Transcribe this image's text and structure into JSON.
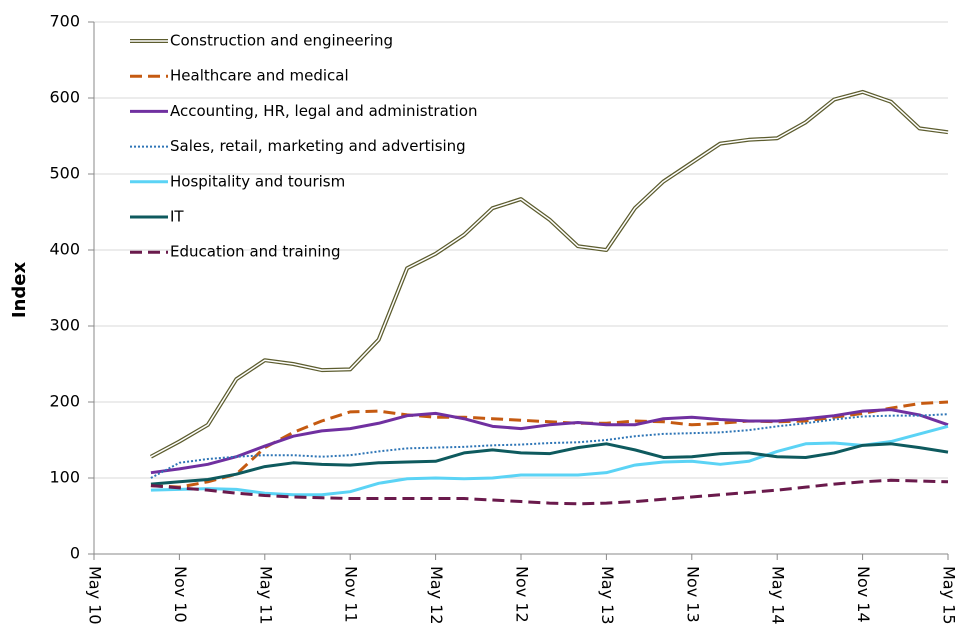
{
  "chart_data": {
    "type": "line",
    "y_label": "Index",
    "categories": [
      "May 10",
      null,
      null,
      "Nov 10",
      null,
      null,
      "May 11",
      null,
      null,
      "Nov 11",
      null,
      null,
      "May 12",
      null,
      null,
      "Nov 12",
      null,
      null,
      "May 13",
      null,
      null,
      "Nov 13",
      null,
      null,
      "May 14",
      null,
      null,
      "Nov 14",
      null,
      null,
      "May 15"
    ],
    "ylim": [
      0,
      700
    ],
    "yticks": [
      0,
      100,
      200,
      300,
      400,
      500,
      600,
      700
    ],
    "grid": true,
    "legend": "top-left",
    "series": [
      {
        "name": "Construction and engineering",
        "color": "#5c5c2e",
        "dash": "double",
        "values": [
          null,
          null,
          128,
          148,
          170,
          230,
          255,
          250,
          242,
          243,
          282,
          376,
          395,
          420,
          455,
          467,
          440,
          405,
          400,
          455,
          490,
          515,
          540,
          545,
          547,
          568,
          598,
          608,
          595,
          560,
          555
        ]
      },
      {
        "name": "Healthcare and medical",
        "color": "#c55a11",
        "dash": "dashed",
        "values": [
          null,
          null,
          90,
          88,
          95,
          105,
          140,
          160,
          175,
          187,
          188,
          183,
          180,
          180,
          178,
          176,
          174,
          172,
          172,
          175,
          174,
          170,
          172,
          175,
          174,
          175,
          180,
          185,
          192,
          198,
          200
        ]
      },
      {
        "name": "Accounting, HR, legal and administration",
        "color": "#7030a0",
        "dash": "solid",
        "values": [
          null,
          null,
          107,
          112,
          118,
          128,
          142,
          155,
          162,
          165,
          172,
          182,
          185,
          178,
          168,
          165,
          170,
          173,
          170,
          170,
          178,
          180,
          177,
          175,
          175,
          178,
          182,
          188,
          190,
          183,
          170
        ]
      },
      {
        "name": "Sales, retail, marketing and advertising",
        "color": "#2e75b6",
        "dash": "dotted",
        "values": [
          null,
          null,
          100,
          120,
          125,
          128,
          130,
          130,
          128,
          130,
          135,
          139,
          140,
          141,
          143,
          144,
          146,
          147,
          150,
          155,
          158,
          159,
          160,
          163,
          168,
          172,
          177,
          181,
          182,
          182,
          184
        ]
      },
      {
        "name": "Hospitality and tourism",
        "color": "#5bd3f5",
        "dash": "solid",
        "values": [
          null,
          null,
          84,
          85,
          86,
          85,
          80,
          78,
          78,
          82,
          93,
          99,
          100,
          99,
          100,
          104,
          104,
          104,
          107,
          117,
          121,
          122,
          118,
          122,
          135,
          145,
          146,
          143,
          148,
          158,
          168
        ]
      },
      {
        "name": "IT",
        "color": "#0e5a5e",
        "dash": "solid",
        "values": [
          null,
          null,
          92,
          95,
          98,
          105,
          115,
          120,
          118,
          117,
          120,
          121,
          122,
          133,
          137,
          133,
          132,
          140,
          145,
          137,
          127,
          128,
          132,
          133,
          128,
          127,
          133,
          143,
          145,
          140,
          134
        ]
      },
      {
        "name": "Education and training",
        "color": "#6a1a4c",
        "dash": "dashed",
        "values": [
          null,
          null,
          90,
          87,
          84,
          80,
          77,
          75,
          74,
          73,
          73,
          73,
          73,
          73,
          71,
          69,
          67,
          66,
          67,
          69,
          72,
          75,
          78,
          81,
          84,
          88,
          92,
          95,
          97,
          96,
          95
        ]
      }
    ]
  }
}
